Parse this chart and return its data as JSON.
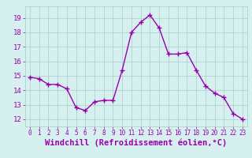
{
  "x": [
    0,
    1,
    2,
    3,
    4,
    5,
    6,
    7,
    8,
    9,
    10,
    11,
    12,
    13,
    14,
    15,
    16,
    17,
    18,
    19,
    20,
    21,
    22,
    23
  ],
  "y": [
    14.9,
    14.8,
    14.4,
    14.4,
    14.1,
    12.8,
    12.6,
    13.2,
    13.3,
    13.3,
    15.4,
    18.0,
    18.7,
    19.2,
    18.3,
    16.5,
    16.5,
    16.6,
    15.4,
    14.3,
    13.8,
    13.5,
    12.4,
    12.0
  ],
  "line_color": "#9900aa",
  "marker": "+",
  "markersize": 4,
  "linewidth": 1.0,
  "markeredgewidth": 1.0,
  "xlabel": "Windchill (Refroidissement éolien,°C)",
  "xlabel_fontsize": 7.5,
  "bg_color": "#d6f0f0",
  "grid_color": "#aacccc",
  "tick_color": "#9900aa",
  "label_color": "#9900aa",
  "ylim": [
    11.5,
    19.8
  ],
  "xlim": [
    -0.5,
    23.5
  ],
  "yticks": [
    12,
    13,
    14,
    15,
    16,
    17,
    18,
    19
  ],
  "xticks": [
    0,
    1,
    2,
    3,
    4,
    5,
    6,
    7,
    8,
    9,
    10,
    11,
    12,
    13,
    14,
    15,
    16,
    17,
    18,
    19,
    20,
    21,
    22,
    23
  ]
}
